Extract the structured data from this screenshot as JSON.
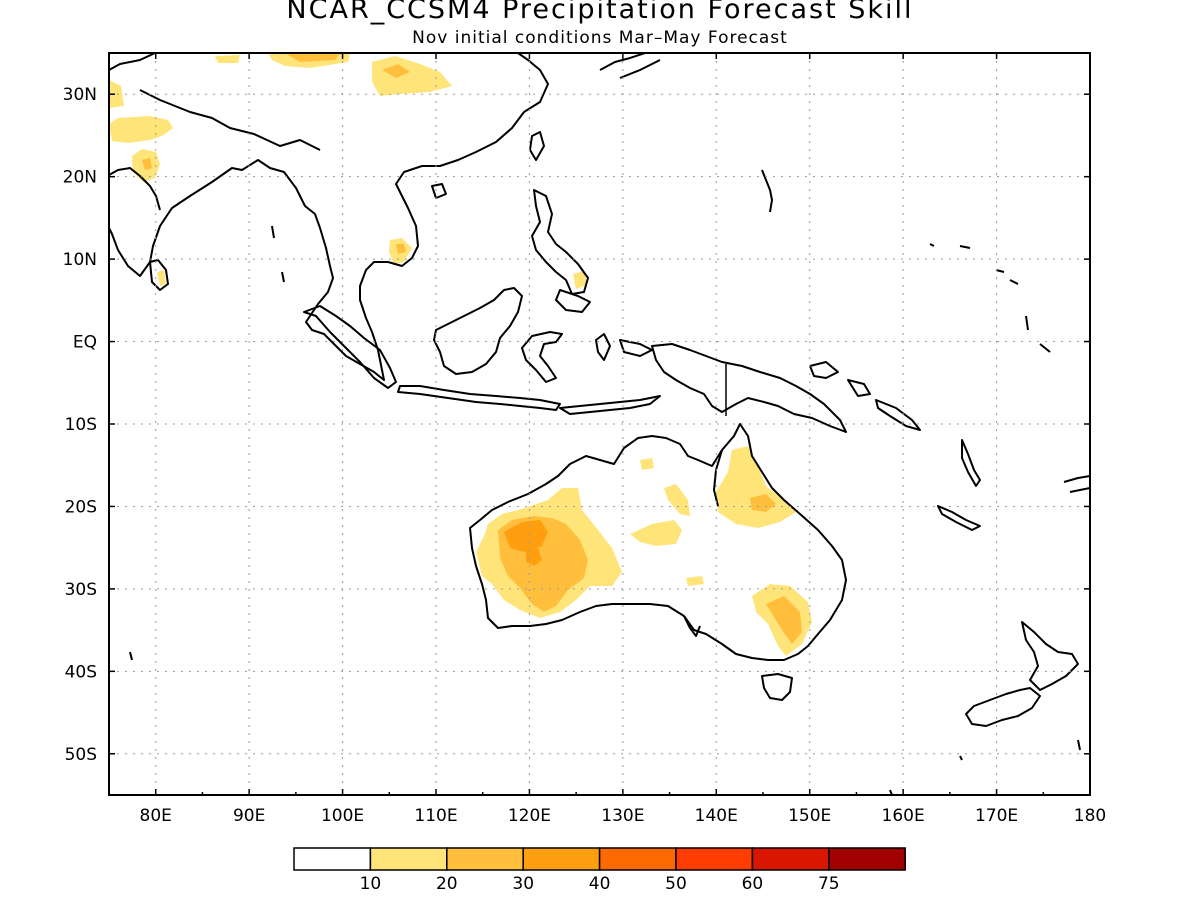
{
  "title": "NCAR_CCSM4 Precipitation Forecast Skill",
  "subtitle": "Nov initial conditions  Mar–May Forecast",
  "map": {
    "lon_range": [
      75,
      180
    ],
    "lat_range": [
      -55,
      35
    ],
    "lon_ticks": [
      "80E",
      "90E",
      "100E",
      "110E",
      "120E",
      "130E",
      "140E",
      "150E",
      "160E",
      "170E",
      "180"
    ],
    "lat_ticks": [
      "30N",
      "20N",
      "10N",
      "EQ",
      "10S",
      "20S",
      "30S",
      "40S",
      "50S"
    ],
    "gridlines": "dotted"
  },
  "legend": {
    "labels": [
      "10",
      "20",
      "30",
      "40",
      "50",
      "60",
      "75"
    ],
    "colors": [
      "#ffffff",
      "#ffe47a",
      "#ffbf3c",
      "#ff9f0f",
      "#ff6a00",
      "#ff3d00",
      "#d91600",
      "#a00000"
    ]
  }
}
